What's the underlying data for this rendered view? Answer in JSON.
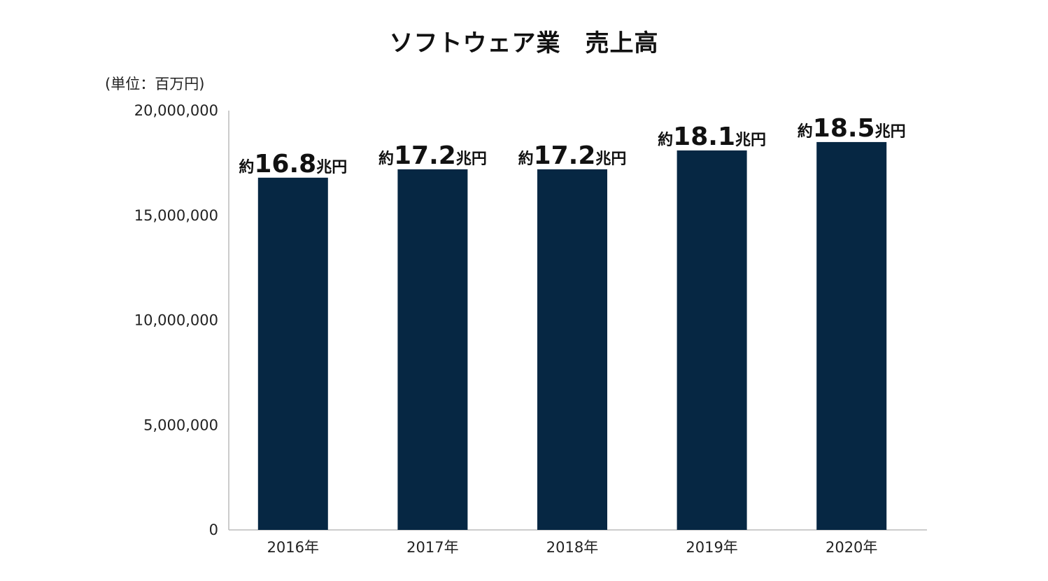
{
  "chart_data": {
    "type": "bar",
    "title": "ソフトウェア業　売上高",
    "unit_label": "(単位：百万円)",
    "categories": [
      "2016年",
      "2017年",
      "2018年",
      "2019年",
      "2020年"
    ],
    "values": [
      16800000,
      17200000,
      17200000,
      18100000,
      18500000
    ],
    "data_labels": [
      {
        "prefix": "約",
        "number": "16.8",
        "suffix": "兆円"
      },
      {
        "prefix": "約",
        "number": "17.2",
        "suffix": "兆円"
      },
      {
        "prefix": "約",
        "number": "17.2",
        "suffix": "兆円"
      },
      {
        "prefix": "約",
        "number": "18.1",
        "suffix": "兆円"
      },
      {
        "prefix": "約",
        "number": "18.5",
        "suffix": "兆円"
      }
    ],
    "ylim": [
      0,
      20000000
    ],
    "yticks": [
      0,
      5000000,
      10000000,
      15000000,
      20000000
    ],
    "ytick_labels": [
      "0",
      "5,000,000",
      "10,000,000",
      "15,000,000",
      "20,000,000"
    ],
    "bar_color": "#062743",
    "axis_color": "#bbbbbb",
    "grid": false
  }
}
